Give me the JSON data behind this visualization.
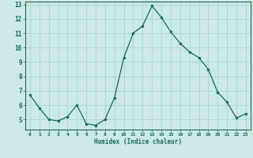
{
  "x": [
    0,
    1,
    2,
    3,
    4,
    5,
    6,
    7,
    8,
    9,
    10,
    11,
    12,
    13,
    14,
    15,
    16,
    17,
    18,
    19,
    20,
    21,
    22,
    23
  ],
  "y": [
    6.7,
    5.8,
    5.0,
    4.9,
    5.2,
    6.0,
    4.7,
    4.6,
    5.0,
    6.5,
    9.3,
    11.0,
    11.5,
    12.9,
    12.1,
    11.1,
    10.3,
    9.7,
    9.3,
    8.5,
    6.9,
    6.2,
    5.1,
    5.4
  ],
  "xlabel": "Humidex (Indice chaleur)",
  "ylim": [
    4.3,
    13.2
  ],
  "xlim": [
    -0.5,
    23.5
  ],
  "yticks": [
    5,
    6,
    7,
    8,
    9,
    10,
    11,
    12,
    13
  ],
  "xticks": [
    0,
    1,
    2,
    3,
    4,
    5,
    6,
    7,
    8,
    9,
    10,
    11,
    12,
    13,
    14,
    15,
    16,
    17,
    18,
    19,
    20,
    21,
    22,
    23
  ],
  "bg_color": "#cce9e7",
  "grid_color": "#aad4d0",
  "line_color": "#1a6b5a",
  "marker_color": "#1a6b5a",
  "tick_label_color": "#1a6b5a",
  "xlabel_color": "#1a6b5a",
  "axis_color": "#336655"
}
